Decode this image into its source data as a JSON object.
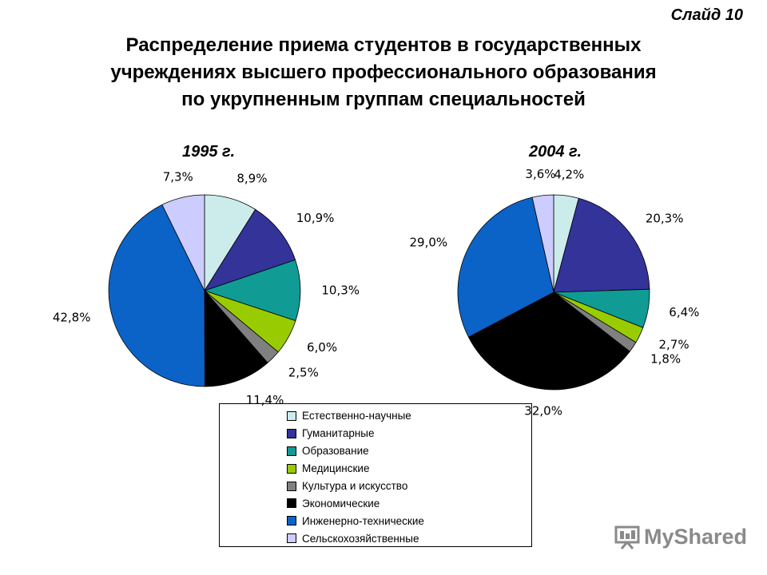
{
  "slide_label": "Слайд 10",
  "title_lines": [
    "Распределение приема студентов в государственных",
    "учреждениях высшего профессионального образования",
    "по укрупненным группам специальностей"
  ],
  "watermark": {
    "text": "MyShared",
    "icon": "presentation-board-icon"
  },
  "chart_data": [
    {
      "type": "pie",
      "title": "1995 г.",
      "categories": [
        "Естественно-научные",
        "Гуманитарные",
        "Образование",
        "Медицинские",
        "Культура и искусство",
        "Экономические",
        "Инженерно-технические",
        "Сельскохозяйственные"
      ],
      "values": [
        8.9,
        10.9,
        10.3,
        6.0,
        2.5,
        11.4,
        42.8,
        7.3
      ],
      "labels": [
        "8,9%",
        "10,9%",
        "10,3%",
        "6,0%",
        "2,5%",
        "11,4%",
        "42,8%",
        "7,3%"
      ],
      "start_angle": "12 o'clock",
      "direction": "clockwise",
      "legend": "bottom-center"
    },
    {
      "type": "pie",
      "title": "2004 г.",
      "categories": [
        "Естественно-научные",
        "Гуманитарные",
        "Образование",
        "Медицинские",
        "Культура и искусство",
        "Экономические",
        "Инженерно-технические",
        "Сельскохозяйственные"
      ],
      "values": [
        4.2,
        20.3,
        6.4,
        2.7,
        1.8,
        32.0,
        29.0,
        3.6
      ],
      "labels": [
        "4,2%",
        "20,3%",
        "6,4%",
        "2,7%",
        "1,8%",
        "32,0%",
        "29,0%",
        "3,6%"
      ],
      "start_angle": "12 o'clock",
      "direction": "clockwise",
      "legend": "bottom-center"
    }
  ],
  "legend": [
    {
      "label": "Естественно-научные",
      "color": "#CCECEC"
    },
    {
      "label": "Гуманитарные",
      "color": "#33339A"
    },
    {
      "label": "Образование",
      "color": "#109B95"
    },
    {
      "label": "Медицинские",
      "color": "#99CC00"
    },
    {
      "label": "Культура и искусство",
      "color": "#808080"
    },
    {
      "label": "Экономические",
      "color": "#000000"
    },
    {
      "label": "Инженерно-технические",
      "color": "#0C63C7"
    },
    {
      "label": "Сельскохозяйственные",
      "color": "#CCCCFF"
    }
  ]
}
